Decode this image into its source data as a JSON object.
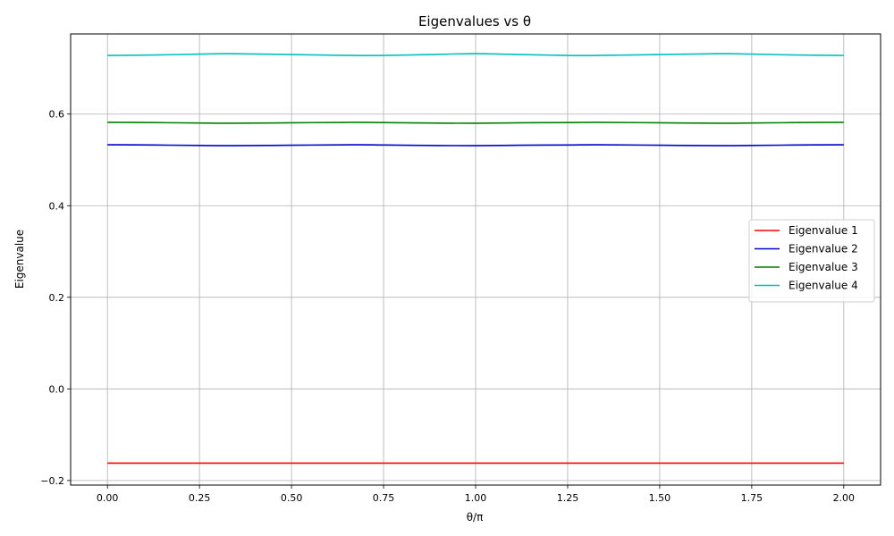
{
  "chart_data": {
    "type": "line",
    "title": "Eigenvalues vs θ",
    "xlabel": "θ/π",
    "ylabel": "Eigenvalue",
    "xlim": [
      -0.1,
      2.1
    ],
    "ylim": [
      -0.21,
      0.775
    ],
    "xticks": [
      0.0,
      0.25,
      0.5,
      0.75,
      1.0,
      1.25,
      1.5,
      1.75,
      2.0
    ],
    "xtick_labels": [
      "0.00",
      "0.25",
      "0.50",
      "0.75",
      "1.00",
      "1.25",
      "1.50",
      "1.75",
      "2.00"
    ],
    "yticks": [
      -0.2,
      0.0,
      0.2,
      0.4,
      0.6
    ],
    "ytick_labels": [
      "−0.2",
      "0.0",
      "0.2",
      "0.4",
      "0.6"
    ],
    "grid": true,
    "legend_position": "center-right",
    "x": [
      0.0,
      0.125,
      0.25,
      0.333,
      0.5,
      0.667,
      0.75,
      0.875,
      1.0,
      1.125,
      1.25,
      1.333,
      1.5,
      1.667,
      1.75,
      1.875,
      2.0
    ],
    "series": [
      {
        "name": "Eigenvalue 1",
        "color": "#ff0000",
        "values": [
          -0.162,
          -0.162,
          -0.162,
          -0.162,
          -0.162,
          -0.162,
          -0.162,
          -0.162,
          -0.162,
          -0.162,
          -0.162,
          -0.162,
          -0.162,
          -0.162,
          -0.162,
          -0.162,
          -0.162
        ]
      },
      {
        "name": "Eigenvalue 2",
        "color": "#0000cc",
        "values": [
          0.533,
          0.5325,
          0.5315,
          0.531,
          0.532,
          0.533,
          0.5325,
          0.5315,
          0.531,
          0.532,
          0.5325,
          0.533,
          0.532,
          0.531,
          0.5315,
          0.5325,
          0.533
        ]
      },
      {
        "name": "Eigenvalue 3",
        "color": "#008000",
        "values": [
          0.582,
          0.5815,
          0.5805,
          0.58,
          0.581,
          0.582,
          0.5815,
          0.5805,
          0.58,
          0.581,
          0.5815,
          0.582,
          0.581,
          0.58,
          0.5805,
          0.5815,
          0.582
        ]
      },
      {
        "name": "Eigenvalue 4",
        "color": "#00bfbf",
        "values": [
          0.728,
          0.729,
          0.731,
          0.732,
          0.73,
          0.728,
          0.728,
          0.73,
          0.732,
          0.73,
          0.728,
          0.728,
          0.73,
          0.732,
          0.731,
          0.729,
          0.728
        ]
      }
    ]
  }
}
